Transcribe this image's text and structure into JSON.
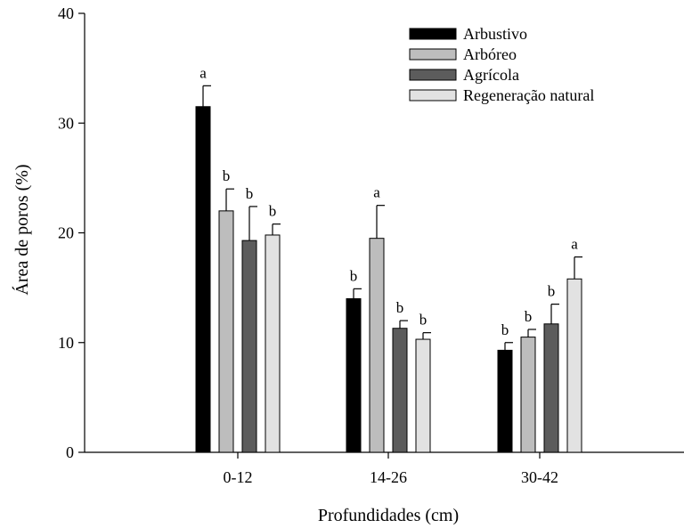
{
  "chart_data": {
    "type": "bar",
    "title": "",
    "xlabel": "Profundidades (cm)",
    "ylabel": "Área de poros (%)",
    "ylim": [
      0,
      40
    ],
    "yticks": [
      "0",
      "10",
      "20",
      "30",
      "40"
    ],
    "categories": [
      "0-12",
      "14-26",
      "30-42"
    ],
    "legend_position": "top-right",
    "grid": false,
    "series": [
      {
        "name": "Arbustivo",
        "color": "#000000",
        "values": [
          31.5,
          14.0,
          9.3
        ],
        "errors": [
          1.9,
          0.9,
          0.7
        ],
        "labels": [
          "a",
          "b",
          "b"
        ]
      },
      {
        "name": "Arbóreo",
        "color": "#bdbdbd",
        "values": [
          22.0,
          19.5,
          10.5
        ],
        "errors": [
          2.0,
          3.0,
          0.7
        ],
        "labels": [
          "b",
          "a",
          "b"
        ]
      },
      {
        "name": "Agrícola",
        "color": "#5c5c5c",
        "values": [
          19.3,
          11.3,
          11.7
        ],
        "errors": [
          3.1,
          0.7,
          1.8
        ],
        "labels": [
          "b",
          "b",
          "b"
        ]
      },
      {
        "name": "Regeneração natural",
        "color": "#e2e2e2",
        "values": [
          19.8,
          10.3,
          15.8
        ],
        "errors": [
          1.0,
          0.6,
          2.0
        ],
        "labels": [
          "b",
          "b",
          "a"
        ]
      }
    ]
  }
}
